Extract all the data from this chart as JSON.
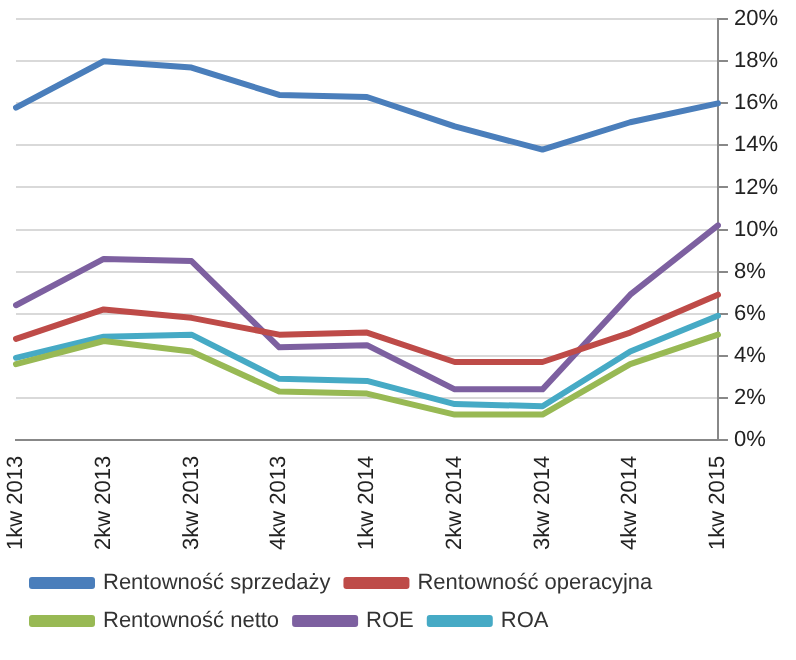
{
  "chart_data": {
    "type": "line",
    "categories": [
      "1kw 2013",
      "2kw 2013",
      "3kw 2013",
      "4kw 2013",
      "1kw 2014",
      "2kw 2014",
      "3kw 2014",
      "4kw 2014",
      "1kw 2015"
    ],
    "series": [
      {
        "name": "Rentowność sprzedaży",
        "color": "#4a7ebb",
        "values": [
          15.8,
          18.0,
          17.7,
          16.4,
          16.3,
          14.9,
          13.8,
          15.1,
          16.0
        ]
      },
      {
        "name": "Rentowność operacyjna",
        "color": "#be4b48",
        "values": [
          4.8,
          6.2,
          5.8,
          5.0,
          5.1,
          3.7,
          3.7,
          5.1,
          6.9
        ]
      },
      {
        "name": "Rentowność netto",
        "color": "#98b954",
        "values": [
          3.6,
          4.7,
          4.2,
          2.3,
          2.2,
          1.2,
          1.2,
          3.6,
          5.0
        ]
      },
      {
        "name": "ROE",
        "color": "#7d60a0",
        "values": [
          6.4,
          8.6,
          8.5,
          4.4,
          4.5,
          2.4,
          2.4,
          6.9,
          10.2
        ]
      },
      {
        "name": "ROA",
        "color": "#46aac5",
        "values": [
          3.9,
          4.9,
          5.0,
          2.9,
          2.8,
          1.7,
          1.6,
          4.2,
          5.9
        ]
      }
    ],
    "ylim": [
      0,
      20
    ],
    "yticks": [
      {
        "value": 0,
        "label": "0%"
      },
      {
        "value": 2,
        "label": "2%"
      },
      {
        "value": 4,
        "label": "4%"
      },
      {
        "value": 6,
        "label": "6%"
      },
      {
        "value": 8,
        "label": "8%"
      },
      {
        "value": 10,
        "label": "10%"
      },
      {
        "value": 12,
        "label": "12%"
      },
      {
        "value": 14,
        "label": "14%"
      },
      {
        "value": 16,
        "label": "16%"
      },
      {
        "value": 18,
        "label": "18%"
      },
      {
        "value": 20,
        "label": "20%"
      }
    ],
    "grid": "y",
    "legend": "bottom",
    "marker": "none",
    "line_style": "solid"
  }
}
